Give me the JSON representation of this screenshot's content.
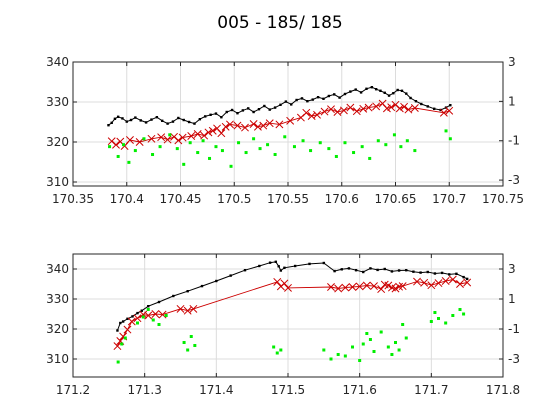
{
  "figure": {
    "title": "005 - 185/ 185",
    "colors": {
      "black_series": "#000000",
      "red_series": "#cc0000",
      "green_series": "#00ee00",
      "grid": "#dcdcdc",
      "axes": "#262626"
    }
  },
  "chart_data": [
    {
      "type": "line",
      "title": "005 - 185/ 185",
      "xlim": [
        170.35,
        170.75
      ],
      "ylim": [
        309,
        340
      ],
      "y2lim": [
        -3.3,
        3
      ],
      "xticks": [
        "170.35",
        "170.4",
        "170.45",
        "170.5",
        "170.55",
        "170.6",
        "170.65",
        "170.7",
        "170.75"
      ],
      "yticks": [
        "310",
        "320",
        "330",
        "340"
      ],
      "y2ticks": [
        "-3",
        "-1",
        "1",
        "3"
      ],
      "grid": true,
      "series": [
        {
          "marker": "dot",
          "axis": "left",
          "color": "#000000",
          "x": [
            170.383,
            170.386,
            170.389,
            170.392,
            170.396,
            170.4,
            170.404,
            170.408,
            170.413,
            170.418,
            170.423,
            170.428,
            170.433,
            170.438,
            170.443,
            170.448,
            170.453,
            170.458,
            170.463,
            170.468,
            170.473,
            170.478,
            170.483,
            170.488,
            170.493,
            170.498,
            170.503,
            170.508,
            170.513,
            170.518,
            170.523,
            170.528,
            170.533,
            170.538,
            170.543,
            170.548,
            170.553,
            170.558,
            170.563,
            170.568,
            170.573,
            170.578,
            170.583,
            170.588,
            170.593,
            170.598,
            170.603,
            170.608,
            170.613,
            170.618,
            170.623,
            170.628,
            170.632,
            170.636,
            170.64,
            170.644,
            170.648,
            170.652,
            170.656,
            170.66,
            170.664,
            170.669,
            170.674,
            170.68,
            170.686,
            170.692,
            170.697,
            170.701
          ],
          "y": [
            324.2,
            324.8,
            325.8,
            326.3,
            325.9,
            325.1,
            325.5,
            326.1,
            325.4,
            324.9,
            325.6,
            326.2,
            325.3,
            324.6,
            325.1,
            326.0,
            325.5,
            325.0,
            324.6,
            325.7,
            326.4,
            326.8,
            327.1,
            326.2,
            327.5,
            328.0,
            327.2,
            327.9,
            328.4,
            327.5,
            328.2,
            329.0,
            328.1,
            328.6,
            329.3,
            330.1,
            329.4,
            330.5,
            330.9,
            330.2,
            330.6,
            331.2,
            330.8,
            331.5,
            331.9,
            331.1,
            332.0,
            332.6,
            333.1,
            332.4,
            333.3,
            333.7,
            333.2,
            332.8,
            332.3,
            331.6,
            332.2,
            333.0,
            332.8,
            332.1,
            331.0,
            330.2,
            329.5,
            328.9,
            328.3,
            328.0,
            328.6,
            329.2
          ]
        },
        {
          "marker": "x",
          "axis": "left",
          "color": "#cc0000",
          "x": [
            170.386,
            170.39,
            170.394,
            170.398,
            170.403,
            170.412,
            170.423,
            170.432,
            170.438,
            170.444,
            170.448,
            170.452,
            170.46,
            170.466,
            170.472,
            170.476,
            170.48,
            170.484,
            170.488,
            170.492,
            170.496,
            170.503,
            170.51,
            170.518,
            170.522,
            170.527,
            170.533,
            170.542,
            170.552,
            170.562,
            170.567,
            170.572,
            170.577,
            170.584,
            170.59,
            170.596,
            170.602,
            170.608,
            170.614,
            170.62,
            170.625,
            170.632,
            170.638,
            170.642,
            170.646,
            170.65,
            170.654,
            170.658,
            170.662,
            170.668,
            170.695,
            170.7
          ],
          "y": [
            320.2,
            319.3,
            320.1,
            319.0,
            320.5,
            320.0,
            320.8,
            321.2,
            320.6,
            321.3,
            320.4,
            321.1,
            321.5,
            322.0,
            321.6,
            322.4,
            322.8,
            323.4,
            322.2,
            323.8,
            324.4,
            324.1,
            323.6,
            324.5,
            323.8,
            324.1,
            324.7,
            324.4,
            325.3,
            326.1,
            327.3,
            326.5,
            326.8,
            327.6,
            328.2,
            327.5,
            327.9,
            328.6,
            327.7,
            328.3,
            328.6,
            328.9,
            329.6,
            328.4,
            328.7,
            329.3,
            328.4,
            328.8,
            328.1,
            328.5,
            327.3,
            327.8
          ]
        },
        {
          "marker": "square",
          "axis": "right",
          "color": "#00ee00",
          "x": [
            170.384,
            170.392,
            170.397,
            170.402,
            170.408,
            170.416,
            170.424,
            170.431,
            170.44,
            170.447,
            170.453,
            170.459,
            170.466,
            170.471,
            170.477,
            170.483,
            170.489,
            170.497,
            170.504,
            170.511,
            170.518,
            170.524,
            170.531,
            170.538,
            170.547,
            170.556,
            170.564,
            170.571,
            170.58,
            170.588,
            170.595,
            170.603,
            170.611,
            170.619,
            170.626,
            170.634,
            170.641,
            170.649,
            170.655,
            170.661,
            170.668,
            170.697,
            170.701
          ],
          "y": [
            -1.3,
            -1.8,
            -1.2,
            -2.1,
            -1.5,
            -0.9,
            -1.7,
            -1.3,
            -0.7,
            -1.4,
            -2.2,
            -1.1,
            -1.6,
            -1.0,
            -1.9,
            -1.3,
            -1.5,
            -2.3,
            -1.1,
            -1.6,
            -0.9,
            -1.4,
            -1.2,
            -1.7,
            -0.8,
            -1.3,
            -1.0,
            -1.5,
            -1.1,
            -1.4,
            -1.8,
            -1.1,
            -1.6,
            -1.3,
            -1.9,
            -1.0,
            -1.2,
            -0.7,
            -1.3,
            -1.0,
            -1.5,
            -0.5,
            -0.9
          ]
        }
      ]
    },
    {
      "type": "line",
      "xlim": [
        171.2,
        171.8
      ],
      "ylim": [
        304,
        345
      ],
      "y2lim": [
        -4.2,
        4
      ],
      "xticks": [
        "171.2",
        "171.3",
        "171.4",
        "171.5",
        "171.6",
        "171.7",
        "171.8"
      ],
      "yticks": [
        "310",
        "320",
        "330",
        "340"
      ],
      "y2ticks": [
        "-3",
        "-1",
        "1",
        "3"
      ],
      "grid": true,
      "series": [
        {
          "marker": "dot",
          "axis": "left",
          "color": "#000000",
          "x": [
            171.262,
            171.266,
            171.27,
            171.276,
            171.283,
            171.29,
            171.296,
            171.305,
            171.32,
            171.34,
            171.36,
            171.38,
            171.4,
            171.42,
            171.44,
            171.46,
            171.475,
            171.483,
            171.487,
            171.49,
            171.495,
            171.51,
            171.53,
            171.55,
            171.565,
            171.575,
            171.585,
            171.595,
            171.605,
            171.615,
            171.625,
            171.635,
            171.645,
            171.655,
            171.665,
            171.675,
            171.685,
            171.695,
            171.705,
            171.715,
            171.725,
            171.735,
            171.745,
            171.75
          ],
          "y": [
            319.5,
            322.0,
            322.5,
            323.4,
            324.2,
            325.3,
            326.1,
            327.6,
            329.0,
            331.0,
            332.6,
            334.3,
            336.0,
            337.8,
            339.6,
            341.0,
            342.1,
            342.4,
            340.9,
            339.5,
            340.4,
            341.0,
            341.7,
            342.0,
            339.3,
            339.9,
            340.2,
            339.6,
            339.0,
            340.2,
            339.7,
            340.0,
            339.2,
            339.5,
            339.6,
            339.1,
            338.8,
            339.0,
            338.5,
            338.7,
            338.2,
            338.4,
            337.3,
            336.7
          ]
        },
        {
          "marker": "x",
          "axis": "left",
          "color": "#cc0000",
          "x": [
            171.262,
            171.266,
            171.27,
            171.276,
            171.282,
            171.29,
            171.298,
            171.305,
            171.315,
            171.325,
            171.35,
            171.36,
            171.368,
            171.485,
            171.49,
            171.495,
            171.5,
            171.56,
            171.57,
            171.58,
            171.59,
            171.6,
            171.61,
            171.62,
            171.63,
            171.635,
            171.64,
            171.645,
            171.65,
            171.655,
            171.66,
            171.68,
            171.69,
            171.7,
            171.71,
            171.72,
            171.73,
            171.74,
            171.75
          ],
          "y": [
            314.3,
            316.0,
            317.5,
            319.8,
            322.5,
            323.6,
            324.8,
            324.5,
            325.0,
            324.8,
            326.7,
            326.1,
            326.7,
            335.7,
            334.2,
            335.2,
            333.7,
            334.0,
            333.5,
            333.8,
            334.0,
            334.2,
            334.5,
            334.3,
            333.3,
            334.8,
            334.5,
            333.8,
            333.5,
            334.1,
            334.3,
            335.8,
            335.4,
            334.6,
            335.3,
            336.0,
            336.5,
            335.0,
            335.5
          ]
        },
        {
          "marker": "square",
          "axis": "right",
          "color": "#00ee00",
          "x": [
            171.263,
            171.268,
            171.273,
            171.29,
            171.298,
            171.305,
            171.312,
            171.32,
            171.33,
            171.355,
            171.36,
            171.365,
            171.37,
            171.48,
            171.485,
            171.49,
            171.55,
            171.56,
            171.57,
            171.58,
            171.59,
            171.6,
            171.605,
            171.61,
            171.615,
            171.62,
            171.63,
            171.64,
            171.645,
            171.65,
            171.655,
            171.66,
            171.665,
            171.7,
            171.705,
            171.71,
            171.72,
            171.73,
            171.74,
            171.745
          ],
          "y": [
            -3.2,
            -2.0,
            -1.6,
            -0.6,
            -0.2,
            0.3,
            -0.4,
            -0.7,
            -0.1,
            -1.9,
            -2.4,
            -1.5,
            -2.1,
            -2.2,
            -2.6,
            -2.4,
            -2.4,
            -3.0,
            -2.7,
            -2.8,
            -2.2,
            -3.1,
            -2.0,
            -1.3,
            -1.7,
            -2.5,
            -1.2,
            -2.2,
            -2.7,
            -1.9,
            -2.4,
            -0.7,
            -1.6,
            -0.5,
            0.1,
            -0.3,
            -0.6,
            -0.1,
            0.3,
            0.0
          ]
        }
      ]
    }
  ]
}
